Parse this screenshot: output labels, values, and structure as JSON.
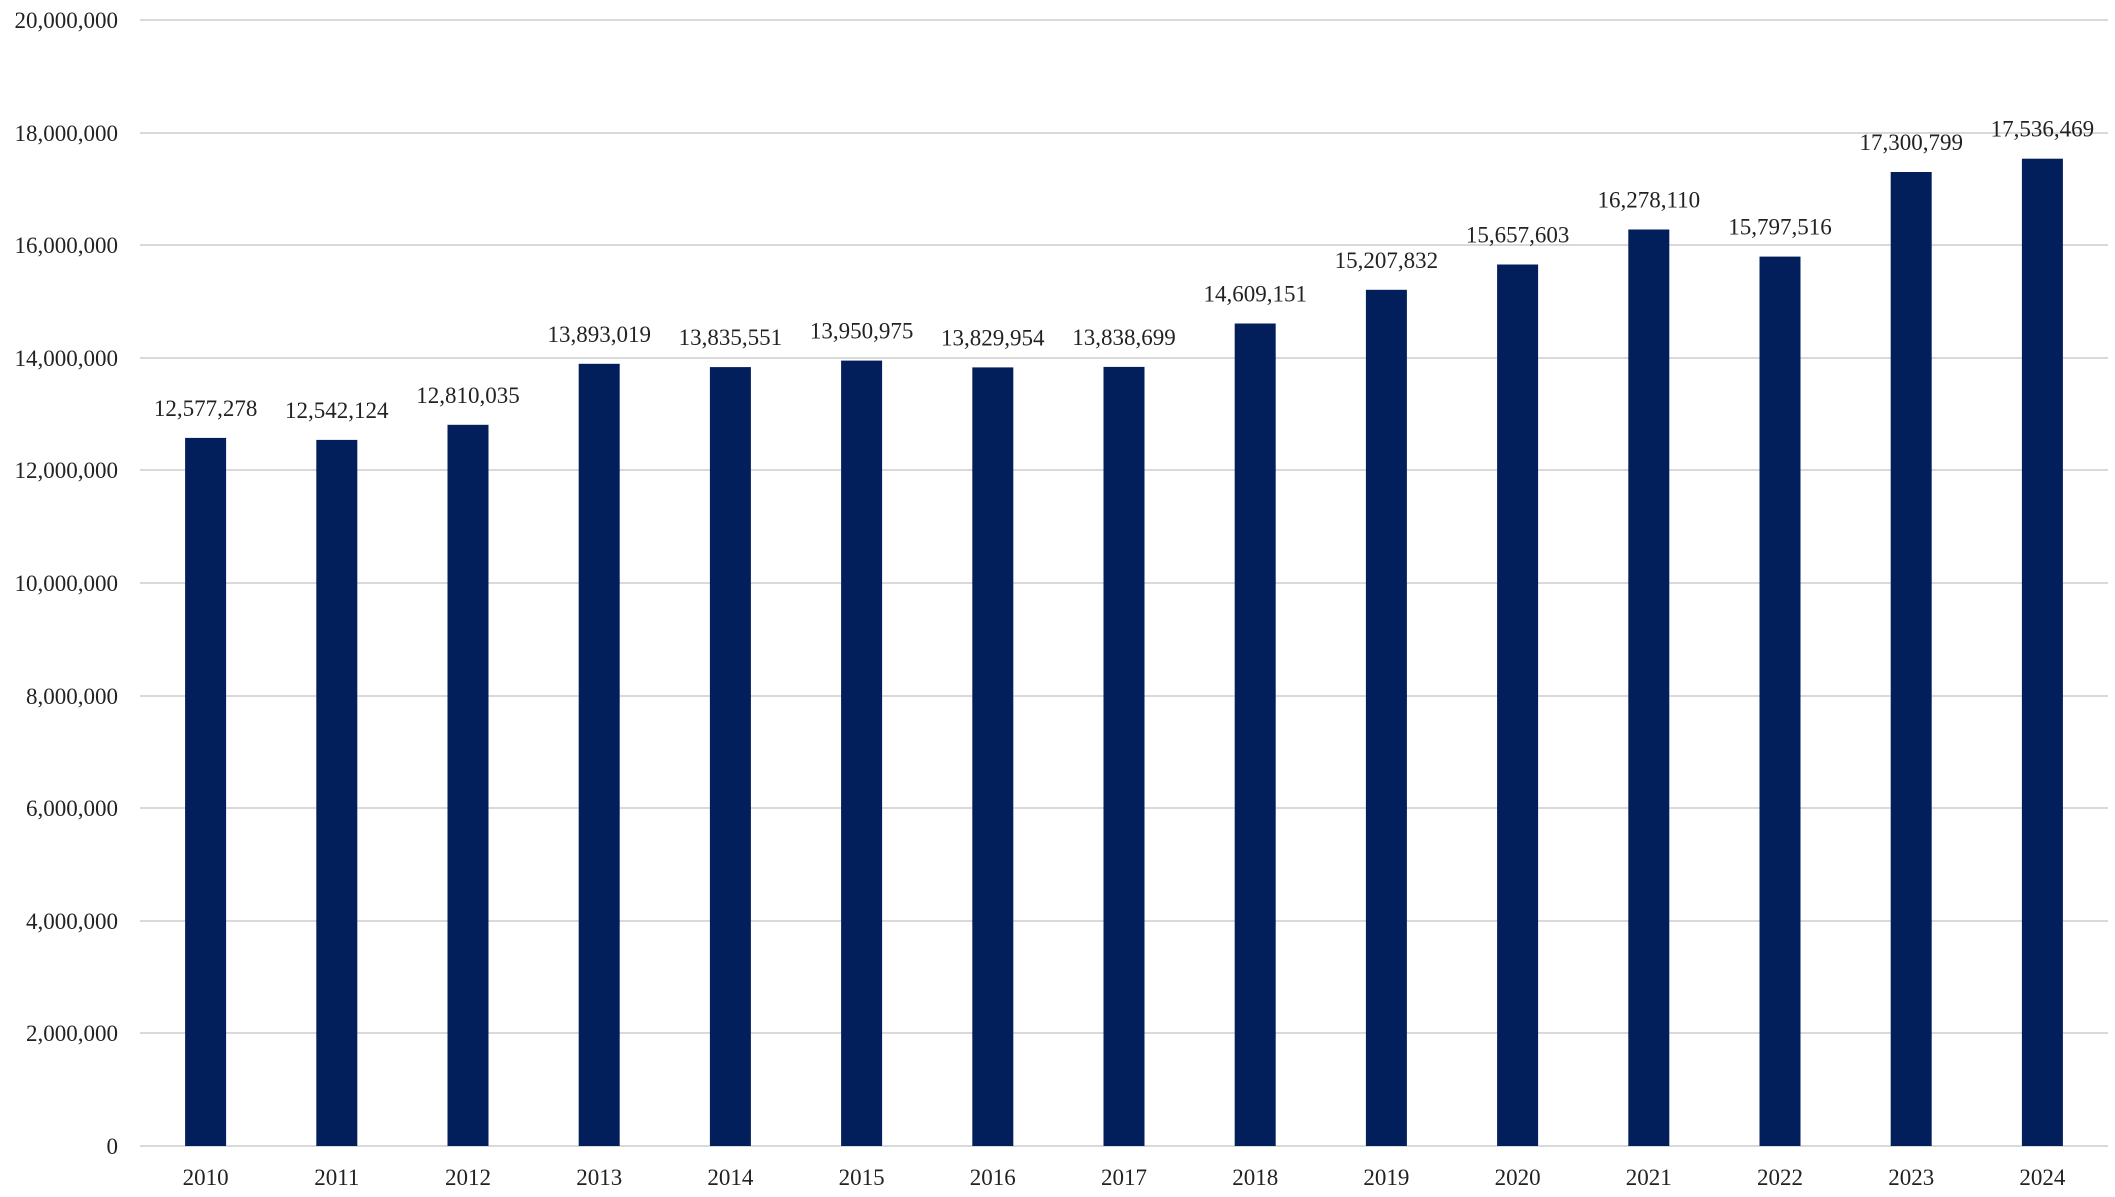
{
  "chart_data": {
    "type": "bar",
    "title": "",
    "xlabel": "",
    "ylabel": "",
    "ylim": [
      0,
      20000000
    ],
    "ytick_step": 2000000,
    "yticks": [
      "0",
      "2,000,000",
      "4,000,000",
      "6,000,000",
      "8,000,000",
      "10,000,000",
      "12,000,000",
      "14,000,000",
      "16,000,000",
      "18,000,000",
      "20,000,000"
    ],
    "grid": true,
    "legend": "none",
    "categories": [
      "2010",
      "2011",
      "2012",
      "2013",
      "2014",
      "2015",
      "2016",
      "2017",
      "2018",
      "2019",
      "2020",
      "2021",
      "2022",
      "2023",
      "2024"
    ],
    "values": [
      12577278,
      12542124,
      12810035,
      13893019,
      13835551,
      13950975,
      13829954,
      13838699,
      14609151,
      15207832,
      15657603,
      16278110,
      15797516,
      17300799,
      17536469
    ],
    "data_labels": [
      "12,577,278",
      "12,542,124",
      "12,810,035",
      "13,893,019",
      "13,835,551",
      "13,950,975",
      "13,829,954",
      "13,838,699",
      "14,609,151",
      "15,207,832",
      "15,657,603",
      "16,278,110",
      "15,797,516",
      "17,300,799",
      "17,536,469"
    ],
    "colors": {
      "bar": "#021f5c",
      "grid": "#d9d9d9",
      "text": "#222222"
    }
  }
}
